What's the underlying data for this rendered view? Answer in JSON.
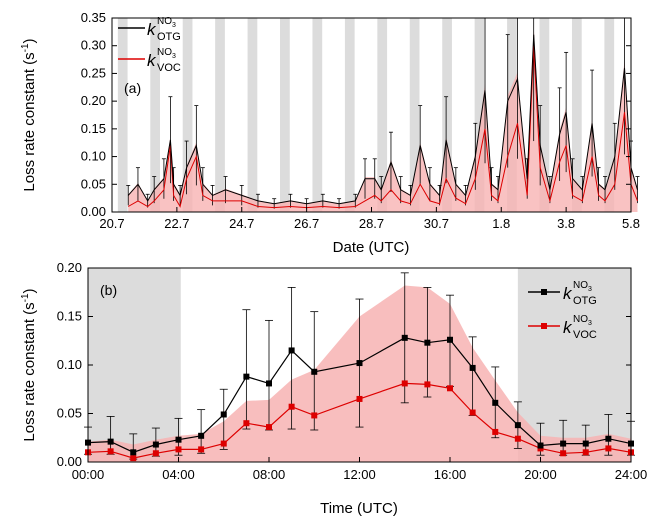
{
  "chart_data": [
    {
      "type": "line",
      "panel_label": "(a)",
      "xlabel": "Date (UTC)",
      "ylabel": "Loss rate constant (s",
      "ylabel_sup": "-1",
      "ylabel_close": ")",
      "ylim": [
        0,
        0.35
      ],
      "yticks": [
        "0.00",
        "0.05",
        "0.10",
        "0.15",
        "0.20",
        "0.25",
        "0.30",
        "0.35"
      ],
      "xticks": [
        "20.7",
        "22.7",
        "24.7",
        "26.7",
        "28.7",
        "30.7",
        "1.8",
        "3.8",
        "5.8"
      ],
      "legend_position": "top-left",
      "series": [
        {
          "name_main": "k",
          "name_sup": "NO",
          "name_sup_sub": "3",
          "name_sub": "OTG",
          "color": "#000000"
        },
        {
          "name_main": "k",
          "name_sup": "NO",
          "name_sup_sub": "3",
          "name_sub": "VOC",
          "color": "#dd0000"
        }
      ],
      "day_index_start": 21.0,
      "otg_x": [
        21.2,
        21.5,
        21.8,
        22.0,
        22.3,
        22.5,
        22.6,
        22.8,
        23.0,
        23.3,
        23.5,
        23.8,
        24.2,
        24.7,
        25.2,
        25.7,
        26.2,
        26.7,
        27.2,
        27.7,
        28.2,
        28.5,
        28.8,
        29.0,
        29.3,
        29.6,
        29.9,
        30.2,
        30.5,
        30.8,
        31.0,
        31.3,
        31.6,
        31.9,
        32.2,
        32.4,
        32.6,
        32.9,
        33.2,
        33.5,
        33.7,
        33.9,
        34.2,
        34.5,
        34.7,
        34.9,
        35.2,
        35.5,
        35.7,
        35.9,
        36.2,
        36.5,
        36.7,
        36.9
      ],
      "otg_y": [
        0.03,
        0.05,
        0.02,
        0.04,
        0.06,
        0.13,
        0.05,
        0.03,
        0.08,
        0.12,
        0.05,
        0.03,
        0.04,
        0.03,
        0.02,
        0.015,
        0.02,
        0.015,
        0.02,
        0.015,
        0.02,
        0.06,
        0.06,
        0.04,
        0.09,
        0.04,
        0.03,
        0.12,
        0.05,
        0.03,
        0.13,
        0.05,
        0.03,
        0.1,
        0.22,
        0.05,
        0.04,
        0.2,
        0.24,
        0.06,
        0.32,
        0.12,
        0.04,
        0.14,
        0.18,
        0.06,
        0.04,
        0.16,
        0.05,
        0.04,
        0.1,
        0.26,
        0.08,
        0.04
      ],
      "voc_y": [
        0.01,
        0.02,
        0.01,
        0.02,
        0.04,
        0.12,
        0.03,
        0.01,
        0.06,
        0.1,
        0.03,
        0.02,
        0.02,
        0.02,
        0.01,
        0.008,
        0.01,
        0.008,
        0.01,
        0.008,
        0.01,
        0.02,
        0.03,
        0.02,
        0.04,
        0.02,
        0.015,
        0.05,
        0.02,
        0.015,
        0.06,
        0.025,
        0.015,
        0.06,
        0.15,
        0.03,
        0.02,
        0.1,
        0.16,
        0.03,
        0.3,
        0.08,
        0.02,
        0.09,
        0.12,
        0.03,
        0.02,
        0.1,
        0.03,
        0.02,
        0.05,
        0.18,
        0.05,
        0.02
      ]
    },
    {
      "type": "line",
      "panel_label": "(b)",
      "xlabel": "Time (UTC)",
      "ylabel": "Loss rate constant (s",
      "ylabel_sup": "-1",
      "ylabel_close": ")",
      "ylim": [
        0,
        0.2
      ],
      "xlim": [
        0,
        24
      ],
      "yticks": [
        "0.00",
        "0.05",
        "0.10",
        "0.15",
        "0.20"
      ],
      "xticks": [
        "00:00",
        "04:00",
        "08:00",
        "12:00",
        "16:00",
        "20:00",
        "24:00"
      ],
      "legend_position": "top-right",
      "night_shading": [
        [
          0,
          4.1
        ],
        [
          19,
          24
        ]
      ],
      "x": [
        0,
        1,
        2,
        3,
        4,
        5,
        6,
        7,
        8,
        9,
        10,
        12,
        14,
        15,
        16,
        17,
        18,
        19,
        20,
        21,
        22,
        23,
        24
      ],
      "series": [
        {
          "name_main": "k",
          "name_sup": "NO",
          "name_sup_sub": "3",
          "name_sub": "OTG",
          "color": "#000000",
          "values": [
            0.02,
            0.021,
            0.01,
            0.018,
            0.023,
            0.027,
            0.049,
            0.088,
            0.081,
            0.115,
            0.093,
            0.102,
            0.128,
            0.123,
            0.126,
            0.097,
            0.061,
            0.038,
            0.017,
            0.019,
            0.019,
            0.024,
            0.019
          ],
          "err_low": [
            0.008,
            0.008,
            0.003,
            0.006,
            0.007,
            0.009,
            0.013,
            0.034,
            0.033,
            0.034,
            0.033,
            0.036,
            0.061,
            0.067,
            0.078,
            0.048,
            0.025,
            0.014,
            0.007,
            0.007,
            0.007,
            0.007,
            0.007
          ],
          "err_high": [
            0.036,
            0.047,
            0.029,
            0.035,
            0.045,
            0.054,
            0.075,
            0.157,
            0.146,
            0.18,
            0.155,
            0.168,
            0.195,
            0.18,
            0.172,
            0.129,
            0.098,
            0.062,
            0.04,
            0.043,
            0.038,
            0.049,
            0.042
          ]
        },
        {
          "name_main": "k",
          "name_sup": "NO",
          "name_sup_sub": "3",
          "name_sub": "VOC",
          "color": "#dd0000",
          "values": [
            0.01,
            0.011,
            0.004,
            0.009,
            0.013,
            0.013,
            0.019,
            0.04,
            0.036,
            0.057,
            0.048,
            0.065,
            0.081,
            0.08,
            0.076,
            0.051,
            0.031,
            0.024,
            0.014,
            0.009,
            0.01,
            0.014,
            0.01
          ],
          "band_low": [
            0.0,
            0.0,
            0.0,
            0.0,
            0.0,
            0.0,
            0.0,
            0.0,
            0.0,
            0.0,
            0.0,
            0.0,
            0.0,
            0.0,
            0.0,
            0.0,
            0.0,
            0.0,
            0.0,
            0.0,
            0.0,
            0.0,
            0.0
          ],
          "band_high": [
            0.021,
            0.023,
            0.018,
            0.023,
            0.027,
            0.029,
            0.042,
            0.063,
            0.064,
            0.085,
            0.095,
            0.15,
            0.182,
            0.18,
            0.163,
            0.118,
            0.084,
            0.051,
            0.027,
            0.025,
            0.025,
            0.029,
            0.024
          ]
        }
      ]
    }
  ]
}
